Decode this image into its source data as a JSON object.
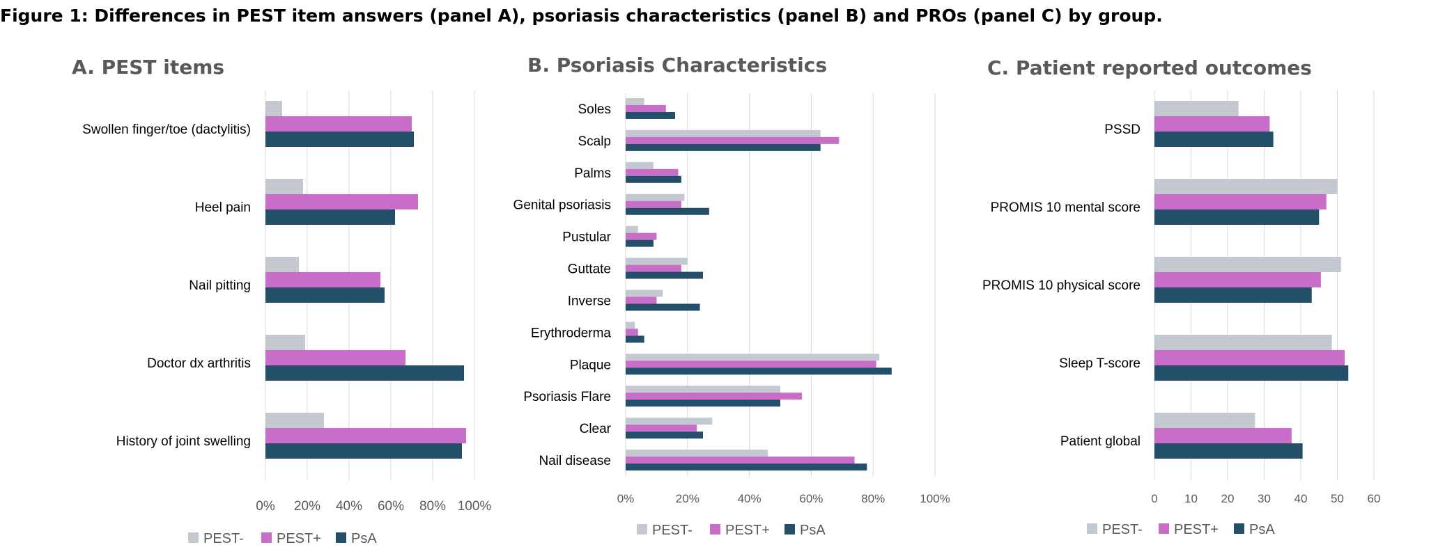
{
  "figure_title": "Figure 1: Differences in PEST item answers (panel A), psoriasis characteristics (panel B) and PROs (panel C) by group.",
  "colors": {
    "PEST-": "#c4c9d1",
    "PEST+": "#c86dc8",
    "PsA": "#234f6b"
  },
  "chart_data": [
    {
      "type": "bar",
      "orientation": "horizontal",
      "title": "A. PEST items",
      "categories": [
        "Swollen finger/toe (dactylitis)",
        "Heel pain",
        "Nail pitting",
        "Doctor dx arthritis",
        "History of joint swelling"
      ],
      "series": [
        {
          "name": "PEST-",
          "values": [
            8,
            18,
            16,
            19,
            28
          ]
        },
        {
          "name": "PEST+",
          "values": [
            70,
            73,
            55,
            67,
            96
          ]
        },
        {
          "name": "PsA",
          "values": [
            71,
            62,
            57,
            95,
            94
          ]
        }
      ],
      "xlim": [
        0,
        100
      ],
      "ticks": [
        0,
        20,
        40,
        60,
        80,
        100
      ],
      "tick_labels": [
        "0%",
        "20%",
        "40%",
        "60%",
        "80%",
        "100%"
      ],
      "grid": true,
      "legend": [
        "PEST-",
        "PEST+",
        "PsA"
      ],
      "legend_position": "bottom"
    },
    {
      "type": "bar",
      "orientation": "horizontal",
      "title": "B. Psoriasis Characteristics",
      "categories": [
        "Soles",
        "Scalp",
        "Palms",
        "Genital psoriasis",
        "Pustular",
        "Guttate",
        "Inverse",
        "Erythroderma",
        "Plaque",
        "Psoriasis Flare",
        "Clear",
        "Nail disease"
      ],
      "series": [
        {
          "name": "PEST-",
          "values": [
            6,
            63,
            9,
            19,
            4,
            20,
            12,
            3,
            82,
            50,
            28,
            46
          ]
        },
        {
          "name": "PEST+",
          "values": [
            13,
            69,
            17,
            18,
            10,
            18,
            10,
            4,
            81,
            57,
            23,
            74
          ]
        },
        {
          "name": "PsA",
          "values": [
            16,
            63,
            18,
            27,
            9,
            25,
            24,
            6,
            86,
            50,
            25,
            78
          ]
        }
      ],
      "xlim": [
        0,
        100
      ],
      "ticks": [
        0,
        20,
        40,
        60,
        80,
        100
      ],
      "tick_labels": [
        "0%",
        "20%",
        "40%",
        "60%",
        "80%",
        "100%"
      ],
      "grid": true,
      "legend": [
        "PEST-",
        "PEST+",
        "PsA"
      ],
      "legend_position": "bottom"
    },
    {
      "type": "bar",
      "orientation": "horizontal",
      "title": "C. Patient reported outcomes",
      "categories": [
        "PSSD",
        "PROMIS 10 mental score",
        "PROMIS 10 physical score",
        "Sleep T-score",
        "Patient global"
      ],
      "series": [
        {
          "name": "PEST-",
          "values": [
            23,
            50,
            51,
            48.5,
            27.5
          ]
        },
        {
          "name": "PEST+",
          "values": [
            31.5,
            47,
            45.5,
            52,
            37.5
          ]
        },
        {
          "name": "PsA",
          "values": [
            32.5,
            45,
            43,
            53,
            40.5
          ]
        }
      ],
      "xlim": [
        0,
        60
      ],
      "ticks": [
        0,
        10,
        20,
        30,
        40,
        50,
        60
      ],
      "tick_labels": [
        "0",
        "10",
        "20",
        "30",
        "40",
        "50",
        "60"
      ],
      "grid": true,
      "legend": [
        "PEST-",
        "PEST+",
        "PsA"
      ],
      "legend_position": "bottom"
    }
  ]
}
